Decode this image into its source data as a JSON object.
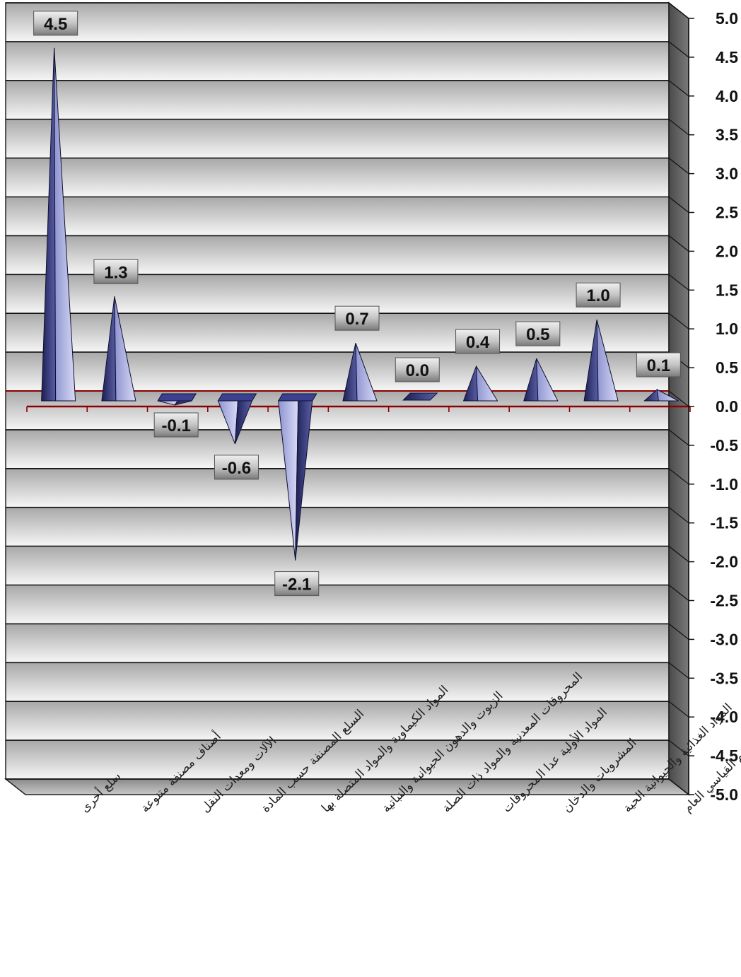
{
  "chart_data": {
    "type": "bar",
    "style": "3d-pyramid",
    "categories": [
      "سلع أخرى",
      "أصناف مصنفة متنوعة",
      "الآلات ومعدات النقل",
      "السلع المصنفة حسب المادة",
      "المواد الكيماوية والمواد المتصلة بها",
      "الزيوت والدهون الحيوانية والنباتية",
      "المحروقات المعدنية والمواد ذات الصلة",
      "المواد الأولية عدا المحروقات",
      "المشروبات والدخان",
      "المواد الغذائية والحيوانية الحية",
      "الرقم القياسي العام"
    ],
    "values": [
      4.5,
      1.3,
      -0.1,
      -0.6,
      -2.1,
      0.7,
      0.0,
      0.4,
      0.5,
      1.0,
      0.1
    ],
    "data_labels": [
      "4.5",
      "1.3",
      "-0.1",
      "-0.6",
      "-2.1",
      "0.7",
      "0.0",
      "0.4",
      "0.5",
      "1.0",
      "0.1"
    ],
    "ylim": [
      -5.0,
      5.0
    ],
    "yticks": [
      "5.0",
      "4.5",
      "4.0",
      "3.5",
      "3.0",
      "2.5",
      "2.0",
      "1.5",
      "1.0",
      "0.5",
      "0.0",
      "-0.5",
      "-1.0",
      "-1.5",
      "-2.0",
      "-2.5",
      "-3.0",
      "-3.5",
      "-4.0",
      "-4.5",
      "-5.0"
    ],
    "ytick_values": [
      5.0,
      4.5,
      4.0,
      3.5,
      3.0,
      2.5,
      2.0,
      1.5,
      1.0,
      0.5,
      0.0,
      -0.5,
      -1.0,
      -1.5,
      -2.0,
      -2.5,
      -3.0,
      -3.5,
      -4.0,
      -4.5,
      -5.0
    ],
    "y_axis_side": "right",
    "grid": true,
    "legend": "none",
    "title": "",
    "xlabel": "",
    "ylabel": "",
    "colors": {
      "bar_light": "#b8bce8",
      "bar_dark": "#2b2f6a",
      "zero_line": "#8b0000",
      "wall_dark": "#9a9a9a",
      "wall_light": "#f4f4f4",
      "label_box_dark": "#6a6a6a",
      "label_box_light": "#e8e8e8"
    }
  }
}
